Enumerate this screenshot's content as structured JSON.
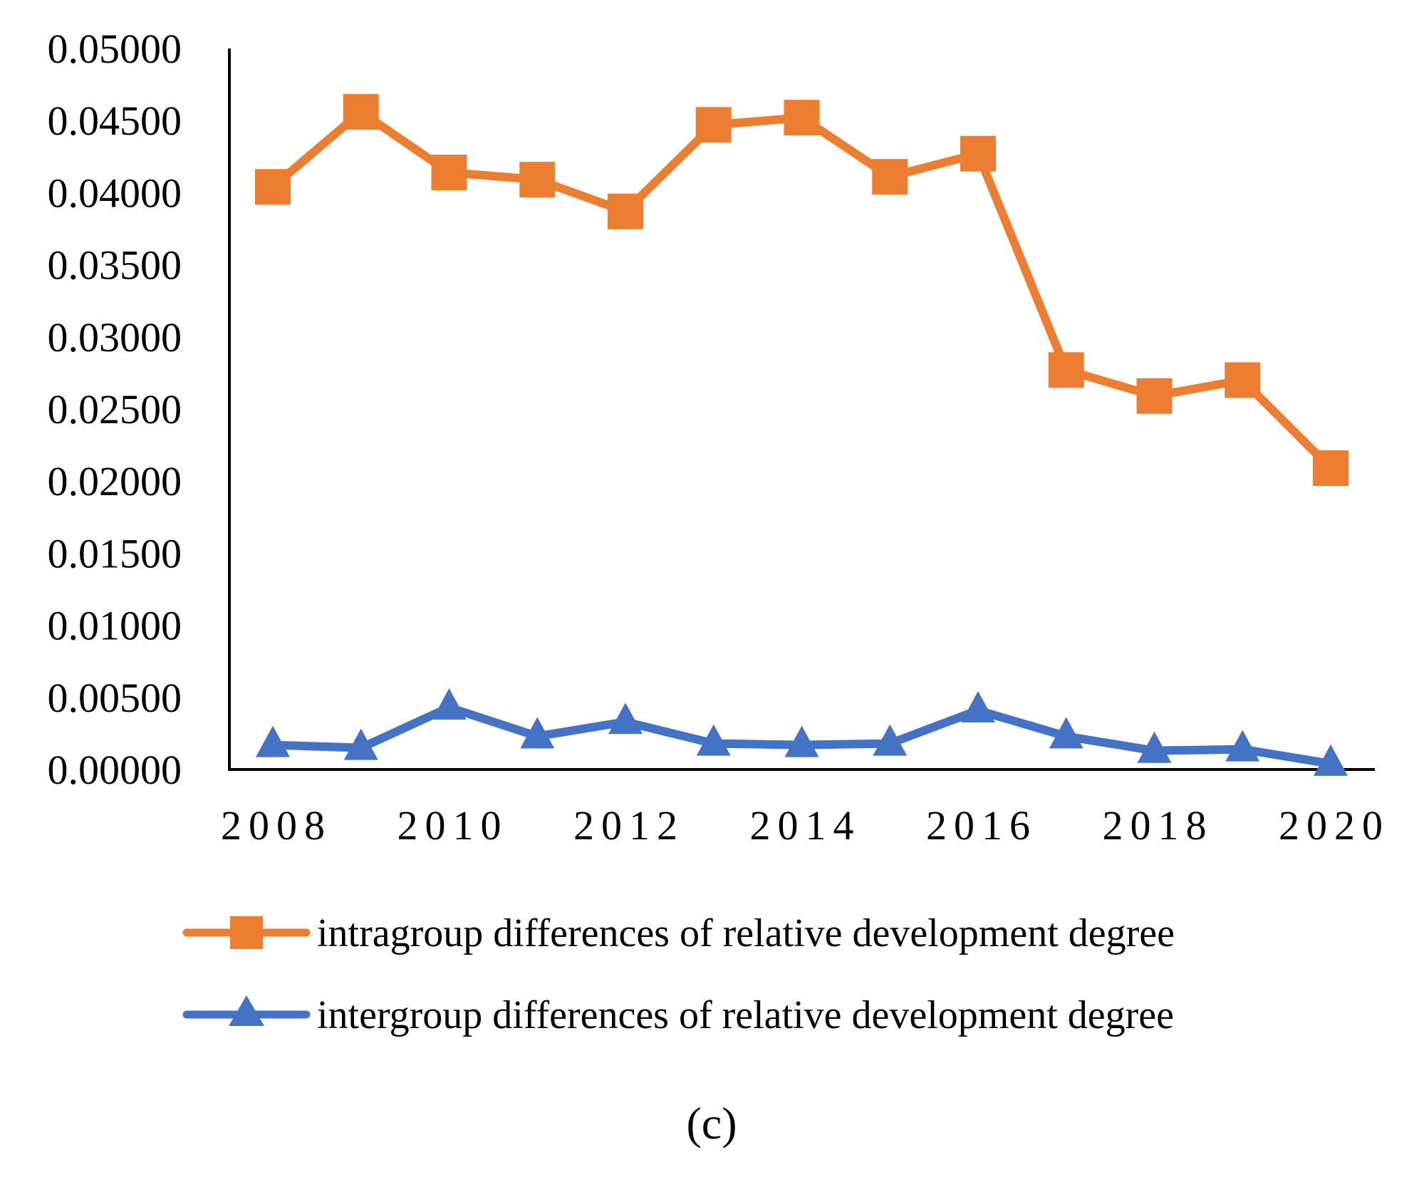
{
  "chart_data": {
    "type": "line",
    "title": "",
    "xlabel": "",
    "ylabel": "",
    "x": [
      2008,
      2009,
      2010,
      2011,
      2012,
      2013,
      2014,
      2015,
      2016,
      2017,
      2018,
      2019,
      2020
    ],
    "x_tick_labels": [
      "2008",
      "2010",
      "2012",
      "2014",
      "2016",
      "2018",
      "2020"
    ],
    "y_tick_labels": [
      "0.00000",
      "0.00500",
      "0.01000",
      "0.01500",
      "0.02000",
      "0.02500",
      "0.03000",
      "0.03500",
      "0.04000",
      "0.04500",
      "0.05000"
    ],
    "ylim": [
      0,
      0.05
    ],
    "grid": false,
    "legend_position": "bottom",
    "series": [
      {
        "name": "intragroup differences of relative development degree",
        "marker": "square",
        "color": "#ED7D31",
        "values": [
          0.0404,
          0.0456,
          0.0414,
          0.0409,
          0.0387,
          0.0447,
          0.0452,
          0.0411,
          0.0427,
          0.0277,
          0.0259,
          0.027,
          0.0209
        ]
      },
      {
        "name": "intergroup differences of relative development degree",
        "marker": "triangle",
        "color": "#4472C4",
        "values": [
          0.0017,
          0.0015,
          0.0043,
          0.0023,
          0.0033,
          0.0018,
          0.0017,
          0.0018,
          0.0041,
          0.0023,
          0.0013,
          0.0014,
          0.0004
        ]
      }
    ],
    "panel_label": "(c)"
  }
}
